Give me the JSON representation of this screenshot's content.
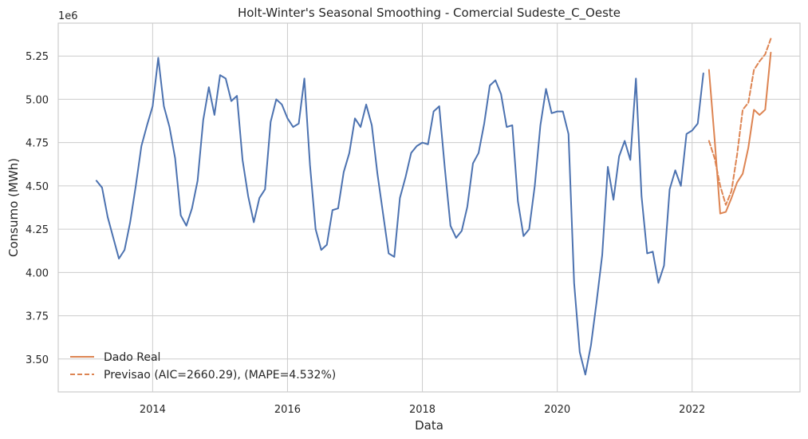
{
  "chart_data": {
    "type": "line",
    "title": "Holt-Winter's Seasonal Smoothing - Comercial Sudeste_C_Oeste",
    "xlabel": "Data",
    "ylabel": "Consumo (MWh)",
    "y_offset_label": "1e6",
    "xlim": [
      2012.6,
      2023.6
    ],
    "ylim": [
      3.31,
      5.44
    ],
    "x_ticks": [
      2014,
      2016,
      2018,
      2020,
      2022
    ],
    "x_tick_labels": [
      "2014",
      "2016",
      "2018",
      "2020",
      "2022"
    ],
    "y_ticks": [
      3.5,
      3.75,
      4.0,
      4.25,
      4.5,
      4.75,
      5.0,
      5.25
    ],
    "y_tick_labels": [
      "3.50",
      "3.75",
      "4.00",
      "4.25",
      "4.50",
      "4.75",
      "5.00",
      "5.25"
    ],
    "grid": true,
    "legend_position": "bottom-left",
    "series": [
      {
        "name": "",
        "color": "#4c72b0",
        "style": "solid",
        "x": [
          "2013-03",
          "2013-04",
          "2013-05",
          "2013-06",
          "2013-07",
          "2013-08",
          "2013-09",
          "2013-10",
          "2013-11",
          "2013-12",
          "2014-01",
          "2014-02",
          "2014-03",
          "2014-04",
          "2014-05",
          "2014-06",
          "2014-07",
          "2014-08",
          "2014-09",
          "2014-10",
          "2014-11",
          "2014-12",
          "2015-01",
          "2015-02",
          "2015-03",
          "2015-04",
          "2015-05",
          "2015-06",
          "2015-07",
          "2015-08",
          "2015-09",
          "2015-10",
          "2015-11",
          "2015-12",
          "2016-01",
          "2016-02",
          "2016-03",
          "2016-04",
          "2016-05",
          "2016-06",
          "2016-07",
          "2016-08",
          "2016-09",
          "2016-10",
          "2016-11",
          "2016-12",
          "2017-01",
          "2017-02",
          "2017-03",
          "2017-04",
          "2017-05",
          "2017-06",
          "2017-07",
          "2017-08",
          "2017-09",
          "2017-10",
          "2017-11",
          "2017-12",
          "2018-01",
          "2018-02",
          "2018-03",
          "2018-04",
          "2018-05",
          "2018-06",
          "2018-07",
          "2018-08",
          "2018-09",
          "2018-10",
          "2018-11",
          "2018-12",
          "2019-01",
          "2019-02",
          "2019-03",
          "2019-04",
          "2019-05",
          "2019-06",
          "2019-07",
          "2019-08",
          "2019-09",
          "2019-10",
          "2019-11",
          "2019-12",
          "2020-01",
          "2020-02",
          "2020-03",
          "2020-04",
          "2020-05",
          "2020-06",
          "2020-07",
          "2020-08",
          "2020-09",
          "2020-10",
          "2020-11",
          "2020-12",
          "2021-01",
          "2021-02",
          "2021-03",
          "2021-04",
          "2021-05",
          "2021-06",
          "2021-07",
          "2021-08",
          "2021-09",
          "2021-10",
          "2021-11",
          "2021-12",
          "2022-01",
          "2022-02",
          "2022-03"
        ],
        "values": [
          4.53,
          4.49,
          4.32,
          4.2,
          4.08,
          4.13,
          4.29,
          4.5,
          4.73,
          4.85,
          4.96,
          5.24,
          4.96,
          4.84,
          4.66,
          4.33,
          4.27,
          4.37,
          4.53,
          4.88,
          5.07,
          4.91,
          5.14,
          5.12,
          4.99,
          5.02,
          4.65,
          4.44,
          4.29,
          4.43,
          4.48,
          4.87,
          5.0,
          4.97,
          4.89,
          4.84,
          4.86,
          5.12,
          4.62,
          4.25,
          4.13,
          4.16,
          4.36,
          4.37,
          4.58,
          4.69,
          4.89,
          4.84,
          4.97,
          4.85,
          4.57,
          4.34,
          4.11,
          4.09,
          4.43,
          4.55,
          4.69,
          4.73,
          4.75,
          4.74,
          4.93,
          4.96,
          4.6,
          4.27,
          4.2,
          4.24,
          4.38,
          4.63,
          4.69,
          4.86,
          5.08,
          5.11,
          5.03,
          4.84,
          4.85,
          4.41,
          4.21,
          4.25,
          4.5,
          4.85,
          5.06,
          4.92,
          4.93,
          4.93,
          4.8,
          3.94,
          3.54,
          3.41,
          3.58,
          3.83,
          4.1,
          4.61,
          4.42,
          4.67,
          4.76,
          4.65,
          5.12,
          4.44,
          4.11,
          4.12,
          3.94,
          4.04,
          4.48,
          4.59,
          4.5,
          4.8,
          4.82,
          4.86,
          5.15
        ]
      },
      {
        "name": "Dado Real",
        "color": "#dd8452",
        "style": "solid",
        "x": [
          "2022-04",
          "2022-05",
          "2022-06",
          "2022-07",
          "2022-08",
          "2022-09",
          "2022-10",
          "2022-11",
          "2022-12",
          "2023-01",
          "2023-02",
          "2023-03"
        ],
        "values": [
          5.17,
          4.77,
          4.34,
          4.35,
          4.43,
          4.52,
          4.57,
          4.72,
          4.94,
          4.91,
          4.94,
          5.27
        ]
      },
      {
        "name": "Previsao (AIC=2660.29), (MAPE=4.532%)",
        "color": "#dd8452",
        "style": "dashed",
        "x": [
          "2022-04",
          "2022-05",
          "2022-06",
          "2022-07",
          "2022-08",
          "2022-09",
          "2022-10",
          "2022-11",
          "2022-12",
          "2023-01",
          "2023-02",
          "2023-03"
        ],
        "values": [
          4.76,
          4.66,
          4.5,
          4.39,
          4.47,
          4.68,
          4.94,
          4.98,
          5.17,
          5.22,
          5.26,
          5.35
        ]
      }
    ]
  }
}
